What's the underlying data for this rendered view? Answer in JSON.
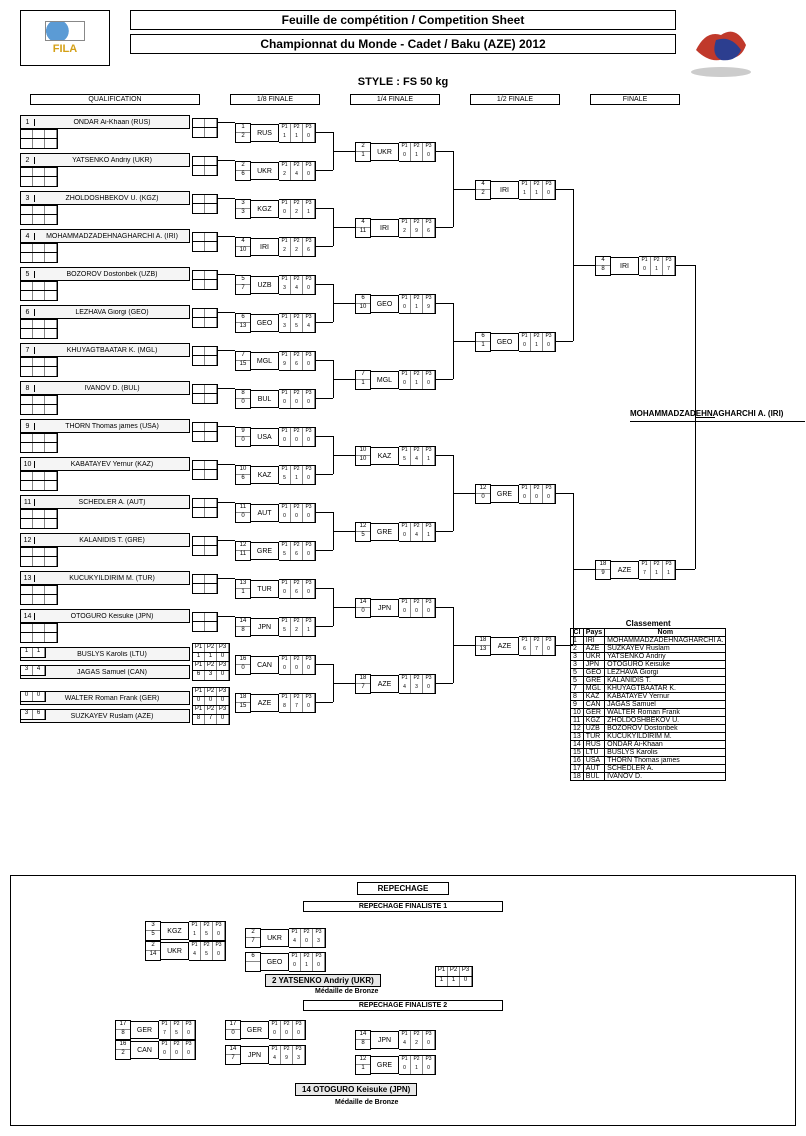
{
  "header": {
    "title1": "Feuille de compétition / Competition Sheet",
    "title2": "Championnat du Monde - Cadet / Baku (AZE) 2012",
    "style": "STYLE : FS 50 kg",
    "logo": "FILA"
  },
  "rounds": {
    "qual": "QUALIFICATION",
    "r16": "1/8 FINALE",
    "qf": "1/4 FINALE",
    "sf": "1/2 FINALE",
    "f": "FINALE"
  },
  "qualifiers": [
    {
      "n": "1",
      "name": "ONDAR Ai-Khaan (RUS)"
    },
    {
      "n": "2",
      "name": "YATSENKO Andriy (UKR)"
    },
    {
      "n": "3",
      "name": "ZHOLDOSHBEKOV U. (KGZ)"
    },
    {
      "n": "4",
      "name": "MOHAMMADZADEHNAGHARCHI A. (IRI)"
    },
    {
      "n": "5",
      "name": "BOZOROV Dostonbek (UZB)"
    },
    {
      "n": "6",
      "name": "LEZHAVA Giorgi (GEO)"
    },
    {
      "n": "7",
      "name": "KHUYAGTBAATAR K. (MGL)"
    },
    {
      "n": "8",
      "name": "IVANOV D. (BUL)"
    },
    {
      "n": "9",
      "name": "THORN Thomas james (USA)"
    },
    {
      "n": "10",
      "name": "KABATAYEV Yernur (KAZ)"
    },
    {
      "n": "11",
      "name": "SCHEDLER A. (AUT)"
    },
    {
      "n": "12",
      "name": "KALANIDIS T. (GRE)"
    },
    {
      "n": "13",
      "name": "KUCUKYILDIRIM M. (TUR)"
    },
    {
      "n": "14",
      "name": "OTOGURO Keisuke (JPN)"
    },
    {
      "n": "15",
      "name": "BUSLYS Karolis (LTU)",
      "s1": "1",
      "s2": "1",
      "p": [
        "P1",
        "P2",
        "P3",
        "1",
        "1",
        "0"
      ]
    },
    {
      "n": "16",
      "name": "JAGAS Samuel (CAN)",
      "s1": "3",
      "s2": "4",
      "p": [
        "P1",
        "P2",
        "P3",
        "6",
        "3",
        "0"
      ]
    },
    {
      "n": "17",
      "name": "WALTER Roman Frank (GER)",
      "s1": "0",
      "s2": "0",
      "p": [
        "P1",
        "P2",
        "P3",
        "0",
        "0",
        "0"
      ]
    },
    {
      "n": "18",
      "name": "SUZKAYEV Ruslam (AZE)",
      "s1": "3",
      "s2": "6",
      "p": [
        "P1",
        "P2",
        "P3",
        "8",
        "7",
        "0"
      ]
    }
  ],
  "r16": [
    {
      "a": "1",
      "b": "2",
      "cc": "RUS",
      "p": [
        "1",
        "1",
        "0"
      ]
    },
    {
      "a": "2",
      "b": "6",
      "cc": "UKR",
      "p": [
        "2",
        "4",
        "0"
      ]
    },
    {
      "a": "3",
      "b": "3",
      "cc": "KGZ",
      "p": [
        "0",
        "2",
        "1"
      ]
    },
    {
      "a": "4",
      "b": "10",
      "cc": "IRI",
      "p": [
        "2",
        "2",
        "6"
      ]
    },
    {
      "a": "5",
      "b": "7",
      "cc": "UZB",
      "p": [
        "3",
        "4",
        "0"
      ]
    },
    {
      "a": "6",
      "b": "13",
      "cc": "GEO",
      "p": [
        "3",
        "5",
        "4"
      ]
    },
    {
      "a": "7",
      "b": "15",
      "cc": "MGL",
      "p": [
        "9",
        "6",
        "0"
      ]
    },
    {
      "a": "8",
      "b": "0",
      "cc": "BUL",
      "p": [
        "0",
        "0",
        "0"
      ]
    },
    {
      "a": "9",
      "b": "0",
      "cc": "USA",
      "p": [
        "0",
        "0",
        "0"
      ]
    },
    {
      "a": "10",
      "b": "6",
      "cc": "KAZ",
      "p": [
        "5",
        "1",
        "0"
      ]
    },
    {
      "a": "11",
      "b": "0",
      "cc": "AUT",
      "p": [
        "0",
        "0",
        "0"
      ]
    },
    {
      "a": "12",
      "b": "11",
      "cc": "GRE",
      "p": [
        "5",
        "6",
        "0"
      ]
    },
    {
      "a": "13",
      "b": "1",
      "cc": "TUR",
      "p": [
        "0",
        "6",
        "0"
      ]
    },
    {
      "a": "14",
      "b": "8",
      "cc": "JPN",
      "p": [
        "5",
        "2",
        "1"
      ]
    },
    {
      "a": "16",
      "b": "0",
      "cc": "CAN",
      "p": [
        "0",
        "0",
        "0"
      ]
    },
    {
      "a": "18",
      "b": "15",
      "cc": "AZE",
      "p": [
        "8",
        "7",
        "0"
      ]
    }
  ],
  "qf": [
    {
      "a": "2",
      "b": "1",
      "cc": "UKR",
      "p": [
        "0",
        "1",
        "0"
      ]
    },
    {
      "a": "4",
      "b": "11",
      "cc": "IRI",
      "p": [
        "2",
        "9",
        "6"
      ]
    },
    {
      "a": "6",
      "b": "10",
      "cc": "GEO",
      "p": [
        "0",
        "1",
        "9"
      ]
    },
    {
      "a": "7",
      "b": "1",
      "cc": "MGL",
      "p": [
        "0",
        "1",
        "0"
      ]
    },
    {
      "a": "10",
      "b": "10",
      "cc": "KAZ",
      "p": [
        "5",
        "4",
        "1"
      ]
    },
    {
      "a": "12",
      "b": "5",
      "cc": "GRE",
      "p": [
        "0",
        "4",
        "1"
      ]
    },
    {
      "a": "14",
      "b": "0",
      "cc": "JPN",
      "p": [
        "0",
        "0",
        "0"
      ]
    },
    {
      "a": "18",
      "b": "7",
      "cc": "AZE",
      "p": [
        "4",
        "3",
        "0"
      ]
    }
  ],
  "sf": [
    {
      "a": "4",
      "b": "2",
      "cc": "IRI",
      "p": [
        "1",
        "1",
        "0"
      ]
    },
    {
      "a": "6",
      "b": "1",
      "cc": "GEO",
      "p": [
        "0",
        "1",
        "0"
      ]
    },
    {
      "a": "12",
      "b": "0",
      "cc": "GRE",
      "p": [
        "0",
        "0",
        "0"
      ]
    },
    {
      "a": "18",
      "b": "13",
      "cc": "AZE",
      "p": [
        "6",
        "7",
        "0"
      ]
    }
  ],
  "finals": [
    {
      "a": "4",
      "b": "8",
      "cc": "IRI",
      "p": [
        "0",
        "1",
        "7"
      ]
    },
    {
      "a": "18",
      "b": "9",
      "cc": "AZE",
      "p": [
        "7",
        "1",
        "1"
      ]
    }
  ],
  "champion": "MOHAMMADZADEHNAGHARCHI A. (IRI)",
  "classement": {
    "title": "Classement",
    "headers": [
      "Cl",
      "Pays",
      "Nom"
    ],
    "rows": [
      [
        "1",
        "IRI",
        "MOHAMMADZADEHNAGHARCHI A."
      ],
      [
        "2",
        "AZE",
        "SUZKAYEV Ruslam"
      ],
      [
        "3",
        "UKR",
        "YATSENKO Andriy"
      ],
      [
        "3",
        "JPN",
        "OTOGURO Keisuke"
      ],
      [
        "5",
        "GEO",
        "LEZHAVA Giorgi"
      ],
      [
        "5",
        "GRE",
        "KALANIDIS T."
      ],
      [
        "7",
        "MGL",
        "KHUYAGTBAATAR K."
      ],
      [
        "8",
        "KAZ",
        "KABATAYEV Yernur"
      ],
      [
        "9",
        "CAN",
        "JAGAS Samuel"
      ],
      [
        "10",
        "GER",
        "WALTER Roman Frank"
      ],
      [
        "11",
        "KGZ",
        "ZHOLDOSHBEKOV U."
      ],
      [
        "12",
        "UZB",
        "BOZOROV Dostonbek"
      ],
      [
        "13",
        "TUR",
        "KUCUKYILDIRIM M."
      ],
      [
        "14",
        "RUS",
        "ONDAR Ai-Khaan"
      ],
      [
        "15",
        "LTU",
        "BUSLYS Karolis"
      ],
      [
        "16",
        "USA",
        "THORN Thomas james"
      ],
      [
        "17",
        "AUT",
        "SCHEDLER A."
      ],
      [
        "18",
        "BUL",
        "IVANOV D."
      ]
    ]
  },
  "repechage": {
    "title": "REPECHAGE",
    "f1": {
      "title": "REPECHAGE FINALISTE 1",
      "m1": [
        {
          "a": "3",
          "b": "5",
          "cc": "KGZ",
          "p": [
            "1",
            "5",
            "0"
          ]
        },
        {
          "a": "2",
          "b": "14",
          "cc": "UKR",
          "p": [
            "4",
            "5",
            "0"
          ]
        }
      ],
      "m2": {
        "a": "2",
        "b": "7",
        "cc": "UKR",
        "p": [
          "4",
          "0",
          "3"
        ]
      },
      "m3": {
        "a": "6",
        "b": "",
        "cc": "GEO",
        "p": [
          "0",
          "1",
          "0"
        ]
      },
      "bronze": {
        "n": "2",
        "name": "YATSENKO Andriy (UKR)",
        "p": [
          "1",
          "1",
          "0"
        ]
      },
      "label": "Médaille de Bronze"
    },
    "f2": {
      "title": "REPECHAGE FINALISTE 2",
      "m1": [
        {
          "a": "17",
          "b": "8",
          "cc": "GER",
          "p": [
            "7",
            "5",
            "0"
          ]
        },
        {
          "a": "16",
          "b": "2",
          "cc": "CAN",
          "p": [
            "0",
            "0",
            "0"
          ]
        }
      ],
      "m2": [
        {
          "a": "17",
          "b": "0",
          "cc": "GER",
          "p": [
            "0",
            "0",
            "0"
          ]
        },
        {
          "a": "14",
          "b": "7",
          "cc": "JPN",
          "p": [
            "4",
            "9",
            "3"
          ]
        }
      ],
      "m3": [
        {
          "a": "14",
          "b": "8",
          "cc": "JPN",
          "p": [
            "4",
            "2",
            "0"
          ]
        },
        {
          "a": "12",
          "b": "1",
          "cc": "GRE",
          "p": [
            "0",
            "1",
            "0"
          ]
        }
      ],
      "bronze": {
        "n": "14",
        "name": "OTOGURO Keisuke (JPN)"
      },
      "label": "Médaille de Bronze"
    }
  }
}
